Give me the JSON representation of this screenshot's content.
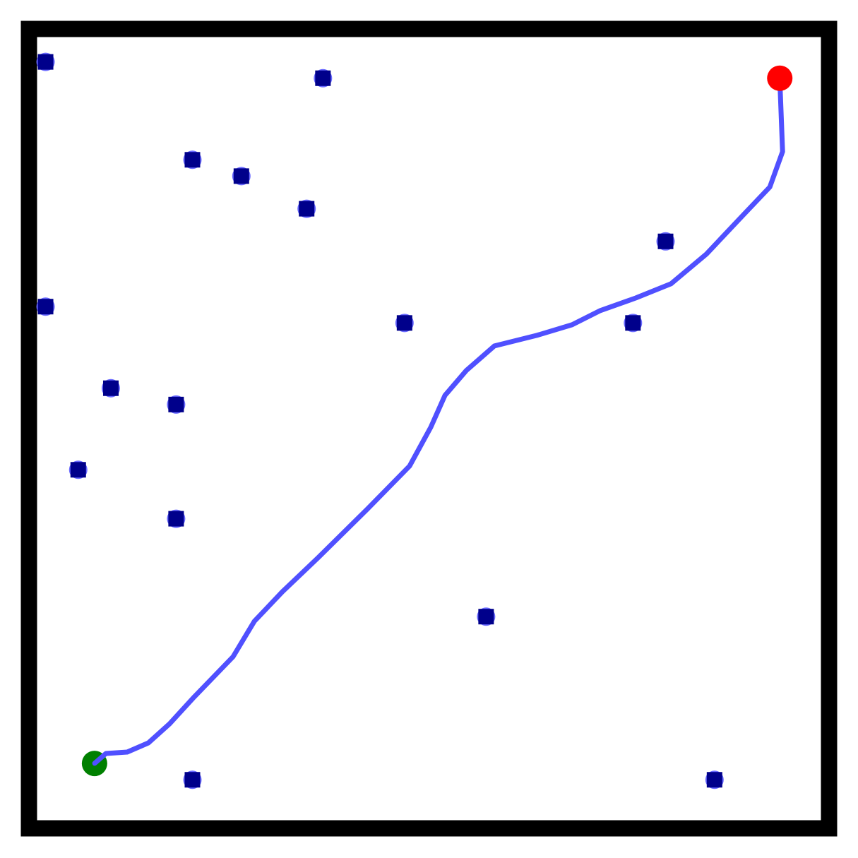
{
  "chart_data": {
    "type": "scatter",
    "xlim": [
      0,
      48
    ],
    "ylim": [
      0,
      48
    ],
    "series": [
      {
        "marker": "square",
        "color": "#00008b",
        "halo": "#6a6aff",
        "x": [
          0.5,
          17.5,
          9.5,
          12.5,
          16.5,
          38.5,
          0.5,
          22.5,
          36.5,
          4.5,
          8.5,
          2.5,
          8.5,
          27.5,
          9.5,
          41.5
        ],
        "y": [
          46.5,
          45.5,
          40.5,
          39.5,
          37.5,
          35.5,
          31.5,
          30.5,
          30.5,
          26.5,
          25.5,
          21.5,
          18.5,
          12.5,
          2.5,
          2.5
        ]
      },
      {
        "marker": "line",
        "color": "#5050ff",
        "x": [
          3.51,
          4.2,
          5.5,
          6.8,
          8.1,
          9.61,
          11.99,
          13.29,
          15.02,
          17.19,
          20.22,
          22.81,
          24.11,
          24.98,
          26.28,
          28.01,
          30.61,
          32.77,
          34.5,
          36.67,
          38.83,
          41.0,
          43.16,
          44.89,
          45.67,
          45.5
        ],
        "y": [
          3.51,
          4.11,
          4.2,
          4.76,
          5.93,
          7.58,
          10.04,
          12.21,
          14.03,
          16.1,
          19.09,
          21.73,
          24.11,
          26.06,
          27.58,
          29.09,
          29.74,
          30.39,
          31.26,
          32.03,
          32.9,
          34.72,
          37.01,
          38.83,
          41.0,
          45.5
        ]
      },
      {
        "marker": "circle",
        "color": "#008000",
        "x": [
          3.5
        ],
        "y": [
          3.5
        ]
      },
      {
        "marker": "circle",
        "color": "#ff0000",
        "x": [
          45.5
        ],
        "y": [
          45.5
        ]
      }
    ]
  }
}
